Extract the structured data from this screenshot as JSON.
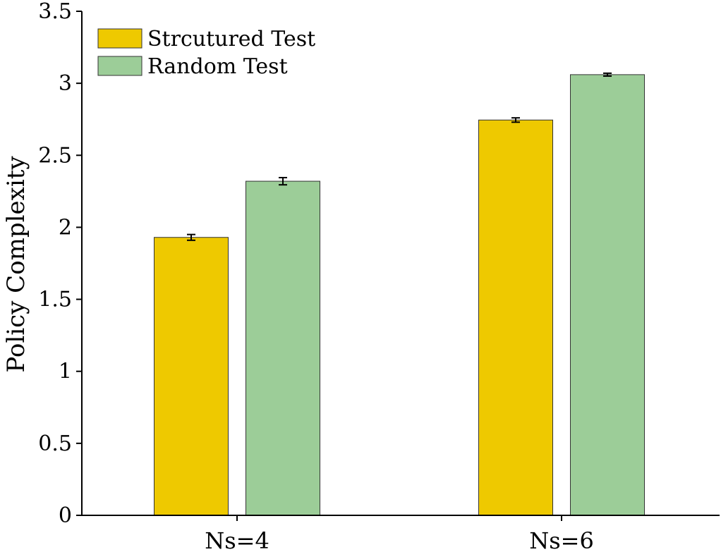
{
  "chart_data": {
    "type": "bar",
    "categories": [
      "Ns=4",
      "Ns=6"
    ],
    "series": [
      {
        "name": "Strcutured Test",
        "values": [
          1.93,
          2.745
        ],
        "errors": [
          0.02,
          0.015
        ],
        "color": "#eec900"
      },
      {
        "name": "Random Test",
        "values": [
          2.32,
          3.06
        ],
        "errors": [
          0.025,
          0.01
        ],
        "color": "#9ccd98"
      }
    ],
    "title": "",
    "xlabel": "",
    "ylabel": "Policy Complexity",
    "ylim": [
      0,
      3.5
    ],
    "yticks": [
      "0",
      "0.5",
      "1",
      "1.5",
      "2",
      "2.5",
      "3",
      "3.5"
    ],
    "grid": false,
    "legend_position": "top-left"
  }
}
